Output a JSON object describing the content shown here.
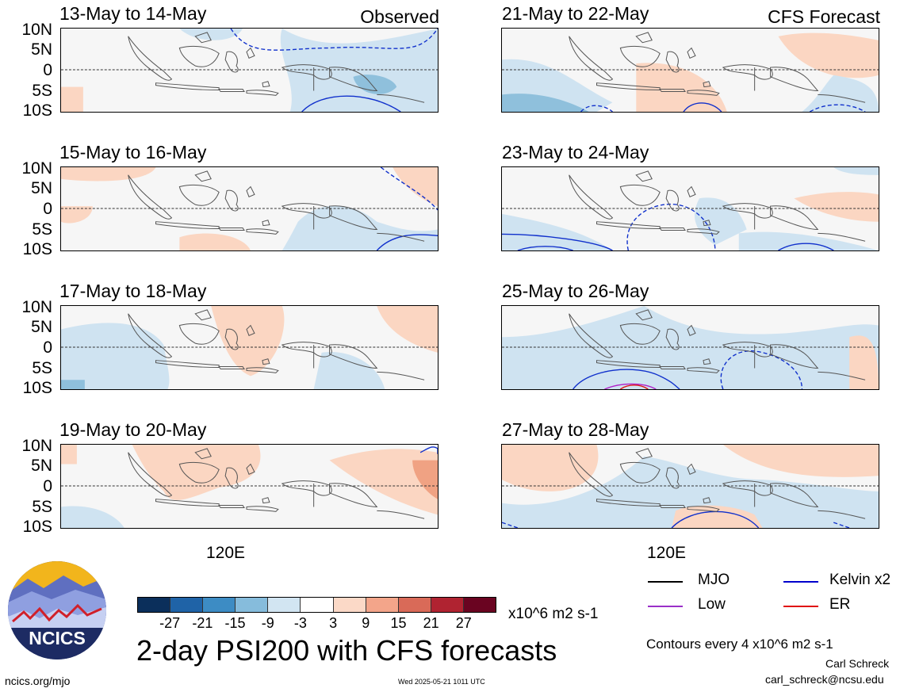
{
  "panels": [
    {
      "title": "13-May to 14-May",
      "label": "Observed"
    },
    {
      "title": "21-May to 22-May",
      "label": "CFS Forecast"
    },
    {
      "title": "15-May to 16-May",
      "label": ""
    },
    {
      "title": "23-May to 24-May",
      "label": ""
    },
    {
      "title": "17-May to 18-May",
      "label": ""
    },
    {
      "title": "25-May to 26-May",
      "label": ""
    },
    {
      "title": "19-May to 20-May",
      "label": ""
    },
    {
      "title": "27-May to 28-May",
      "label": ""
    }
  ],
  "lat_labels": [
    "10N",
    "5N",
    "0",
    "5S",
    "10S"
  ],
  "lon_label": "120E",
  "colorbar": {
    "colors": [
      "#0b2f5b",
      "#1f63a7",
      "#3d8cc4",
      "#86bcdc",
      "#d2e5f2",
      "#ffffff",
      "#fbd9c7",
      "#f3a58a",
      "#d96a58",
      "#b02331",
      "#6a0421"
    ],
    "ticks": [
      "-27",
      "-21",
      "-15",
      "-9",
      "-3",
      "3",
      "9",
      "15",
      "21",
      "27"
    ],
    "units": "x10^6 m2 s-1"
  },
  "title": "2-day PSI200 with CFS forecasts",
  "legend": [
    {
      "label": "MJO",
      "color": "#000000"
    },
    {
      "label": "Kelvin x2",
      "color": "#0000cc"
    },
    {
      "label": "Low",
      "color": "#9a30c8"
    },
    {
      "label": "ER",
      "color": "#e01010"
    }
  ],
  "contour_note": "Contours every 4 x10^6 m2 s-1",
  "author": "Carl Schreck",
  "email": "carl_schreck@ncsu.edu",
  "site": "ncics.org/mjo",
  "timestamp": "Wed 2025-05-21 1011 UTC",
  "logo_text": "NCICS"
}
